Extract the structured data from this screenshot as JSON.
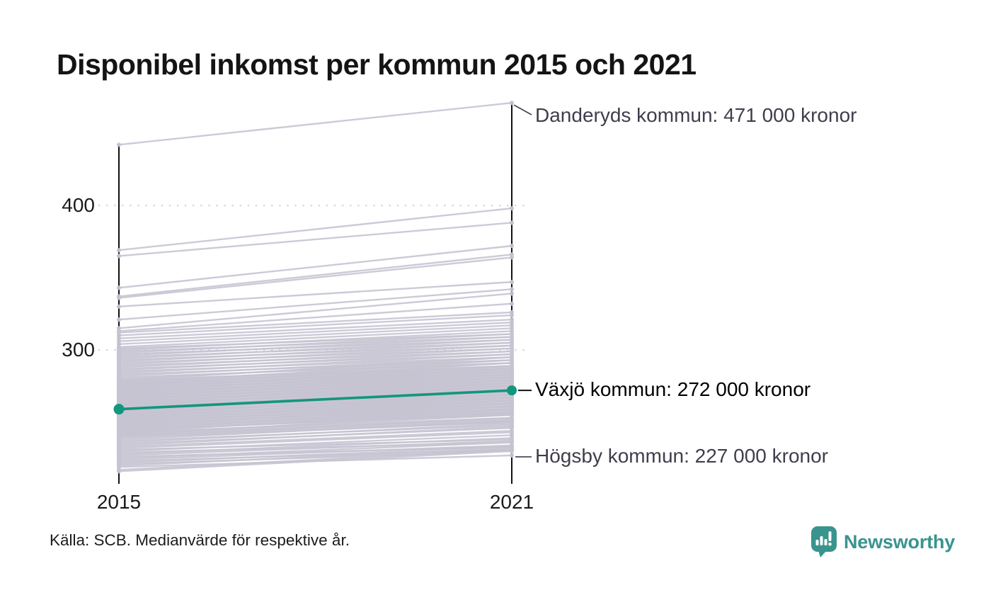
{
  "header": {
    "title": "Disponibel inkomst per kommun 2015 och 2021"
  },
  "axis": {
    "y_ticks": [
      "400",
      "300"
    ],
    "x_labels": [
      "2015",
      "2021"
    ]
  },
  "footer": {
    "source": "Källa: SCB. Medianvärde för respektive år.",
    "brand": "Newsworthy"
  },
  "colors": {
    "line_gray": "#c6c3d2",
    "highlight_teal": "#12967d",
    "axis_black": "#111111",
    "grid_gray": "#d8d8d8",
    "annotation_text": "#3f3e4d",
    "brand_teal": "#39948e"
  },
  "chart_data": {
    "type": "line",
    "subtype": "slopegraph",
    "title": "Disponibel inkomst per kommun 2015 och 2021",
    "x": [
      "2015",
      "2021"
    ],
    "values_in": "thousands_of_kronor",
    "ylim": [
      205,
      480
    ],
    "yticks": [
      400,
      300
    ],
    "grid": "dotted-horizontal",
    "legend": "none",
    "callouts": [
      {
        "label": "Danderyds kommun: 471 000 kronor",
        "x": "2021",
        "value": 471
      },
      {
        "label": "Växjö kommun: 272 000 kronor",
        "x": "2021",
        "value": 272
      },
      {
        "label": "Högsby kommun: 227 000 kronor",
        "x": "2021",
        "value": 227
      }
    ],
    "highlight": {
      "name": "Växjö kommun",
      "values": [
        259,
        272
      ]
    },
    "extremes": {
      "max_2021": {
        "name": "Danderyds kommun",
        "values": [
          442,
          471
        ]
      },
      "min_2021": {
        "name": "Högsby kommun",
        "values": [
          219,
          227
        ]
      }
    },
    "series_gray": [
      [
        442,
        471
      ],
      [
        369,
        398
      ],
      [
        365,
        388
      ],
      [
        343,
        372
      ],
      [
        337,
        366
      ],
      [
        336,
        364
      ],
      [
        330,
        347
      ],
      [
        321,
        342
      ],
      [
        315,
        339
      ],
      [
        313,
        332
      ],
      [
        312,
        326
      ],
      [
        310,
        324
      ],
      [
        308,
        321
      ],
      [
        306,
        319
      ],
      [
        304,
        317
      ],
      [
        302,
        315
      ],
      [
        301,
        311
      ],
      [
        300,
        313
      ],
      [
        299,
        309
      ],
      [
        298,
        311
      ],
      [
        297,
        307
      ],
      [
        296,
        309
      ],
      [
        295,
        305
      ],
      [
        294,
        307
      ],
      [
        293,
        303
      ],
      [
        292,
        305
      ],
      [
        291,
        301
      ],
      [
        290,
        303
      ],
      [
        289,
        299
      ],
      [
        288,
        301
      ],
      [
        287,
        297
      ],
      [
        286,
        299
      ],
      [
        285,
        295
      ],
      [
        284,
        297
      ],
      [
        283,
        293
      ],
      [
        282,
        295
      ],
      [
        281,
        291
      ],
      [
        280,
        293
      ],
      [
        279,
        289
      ],
      [
        278,
        291
      ],
      [
        277,
        287
      ],
      [
        276,
        289
      ],
      [
        275,
        285
      ],
      [
        274,
        287
      ],
      [
        273,
        283
      ],
      [
        272,
        285
      ],
      [
        271,
        281
      ],
      [
        270,
        283
      ],
      [
        269,
        279
      ],
      [
        268,
        281
      ],
      [
        267,
        277
      ],
      [
        266,
        279
      ],
      [
        265,
        275
      ],
      [
        264,
        277
      ],
      [
        263,
        273
      ],
      [
        262,
        275
      ],
      [
        261,
        271
      ],
      [
        260,
        273
      ],
      [
        259,
        269
      ],
      [
        258,
        271
      ],
      [
        257,
        267
      ],
      [
        256,
        269
      ],
      [
        255,
        265
      ],
      [
        254,
        267
      ],
      [
        253,
        263
      ],
      [
        252,
        265
      ],
      [
        251,
        261
      ],
      [
        250,
        263
      ],
      [
        249,
        259
      ],
      [
        248,
        261
      ],
      [
        247,
        257
      ],
      [
        246,
        259
      ],
      [
        245,
        255
      ],
      [
        244,
        257
      ],
      [
        243,
        253
      ],
      [
        242,
        255
      ],
      [
        241,
        251
      ],
      [
        240,
        253
      ],
      [
        239,
        250
      ],
      [
        238,
        251
      ],
      [
        237,
        248
      ],
      [
        236,
        249
      ],
      [
        235,
        246
      ],
      [
        234,
        247
      ],
      [
        240,
        250
      ],
      [
        242,
        252
      ],
      [
        244,
        256
      ],
      [
        246,
        256
      ],
      [
        248,
        258
      ],
      [
        250,
        260
      ],
      [
        252,
        262
      ],
      [
        254,
        264
      ],
      [
        256,
        266
      ],
      [
        258,
        268
      ],
      [
        260,
        270
      ],
      [
        262,
        272
      ],
      [
        264,
        274
      ],
      [
        266,
        276
      ],
      [
        268,
        278
      ],
      [
        270,
        280
      ],
      [
        272,
        282
      ],
      [
        274,
        284
      ],
      [
        276,
        286
      ],
      [
        278,
        288
      ],
      [
        241,
        257
      ],
      [
        243,
        259
      ],
      [
        245,
        261
      ],
      [
        247,
        263
      ],
      [
        249,
        265
      ],
      [
        251,
        267
      ],
      [
        253,
        269
      ],
      [
        255,
        271
      ],
      [
        257,
        273
      ],
      [
        259,
        275
      ],
      [
        261,
        277
      ],
      [
        263,
        279
      ],
      [
        265,
        281
      ],
      [
        267,
        283
      ],
      [
        269,
        285
      ],
      [
        271,
        287
      ],
      [
        273,
        289
      ],
      [
        275,
        291
      ],
      [
        277,
        293
      ],
      [
        279,
        295
      ],
      [
        233,
        244
      ],
      [
        232,
        243
      ],
      [
        231,
        238
      ],
      [
        230,
        241
      ],
      [
        229,
        236
      ],
      [
        228,
        239
      ],
      [
        227,
        237
      ],
      [
        226,
        233
      ],
      [
        225,
        236
      ],
      [
        224,
        234
      ],
      [
        223,
        231
      ],
      [
        222,
        233
      ],
      [
        221,
        230
      ],
      [
        220,
        232
      ],
      [
        219,
        227
      ],
      [
        217,
        231
      ],
      [
        216,
        230
      ]
    ]
  }
}
